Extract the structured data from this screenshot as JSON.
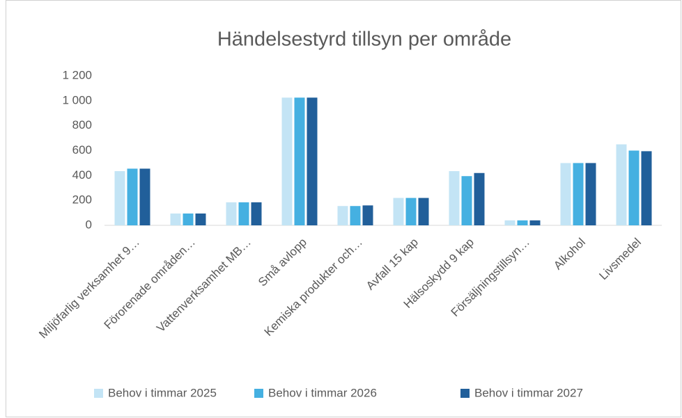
{
  "chart_data": {
    "type": "bar",
    "title": "Händelsestyrd tillsyn per område",
    "categories": [
      "Miljöfarlig verksamhet 9…",
      "Förorenade områden…",
      "Vattenverksamhet MB…",
      "Små avlopp",
      "Kemiska produkter och…",
      "Avfall 15 kap",
      "Hälsoskydd 9 kap",
      "Försäljningstillsyn…",
      "Alkohol",
      "Livsmedel"
    ],
    "series": [
      {
        "name": "Behov i timmar 2025",
        "color": "#c3e4f5",
        "values": [
          435,
          95,
          185,
          1025,
          155,
          220,
          435,
          40,
          500,
          650
        ]
      },
      {
        "name": "Behov i timmar 2026",
        "color": "#45b0e1",
        "values": [
          455,
          95,
          185,
          1025,
          155,
          220,
          395,
          40,
          500,
          600
        ]
      },
      {
        "name": "Behov i timmar 2027",
        "color": "#215f9a",
        "values": [
          455,
          95,
          185,
          1025,
          160,
          220,
          420,
          40,
          500,
          595
        ]
      }
    ],
    "ylim": [
      0,
      1200
    ],
    "yticks": [
      0,
      200,
      400,
      600,
      800,
      {
        "value": 1000,
        "label": "1 000"
      },
      {
        "value": 1200,
        "label": "1 200"
      }
    ],
    "legend": "bottom"
  }
}
